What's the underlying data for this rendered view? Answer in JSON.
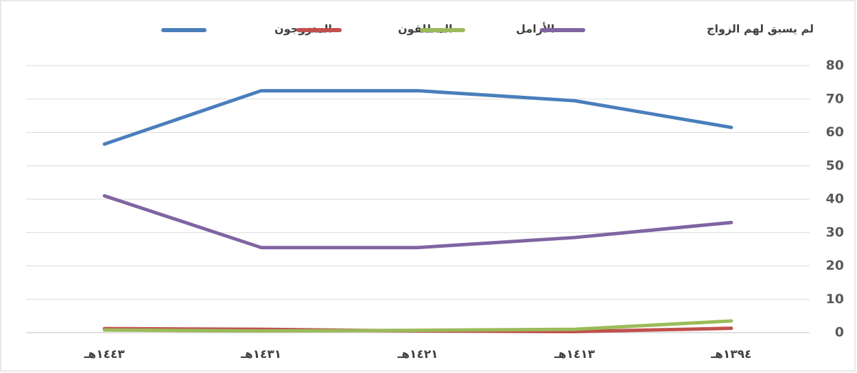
{
  "chart_data": {
    "type": "line",
    "categories": [
      "١٤٤٣هـ",
      "١٤٣١هـ",
      "١٤٢١هـ",
      "١٤١٣هـ",
      "١٣٩٤هـ"
    ],
    "series": [
      {
        "name": "المتزوجون",
        "color": "#4a7ebb",
        "values": [
          56.5,
          72.5,
          72.5,
          69.5,
          61.5
        ]
      },
      {
        "name": "المطلقون",
        "color": "#c0504d",
        "values": [
          1.2,
          1,
          0.5,
          0.3,
          1.3
        ]
      },
      {
        "name": "الأرامل",
        "color": "#9bbb59",
        "values": [
          0.8,
          0.5,
          0.7,
          1,
          3.5
        ]
      },
      {
        "name": "لم يسبق لهم الزواج",
        "color": "#8064a2",
        "values": [
          41,
          25.5,
          25.5,
          28.5,
          33
        ]
      }
    ],
    "ylim": [
      0,
      80
    ],
    "yticks": [
      0,
      10,
      20,
      30,
      40,
      50,
      60,
      70,
      80
    ],
    "grid": true,
    "legend": "top",
    "y_axis_side": "right"
  }
}
